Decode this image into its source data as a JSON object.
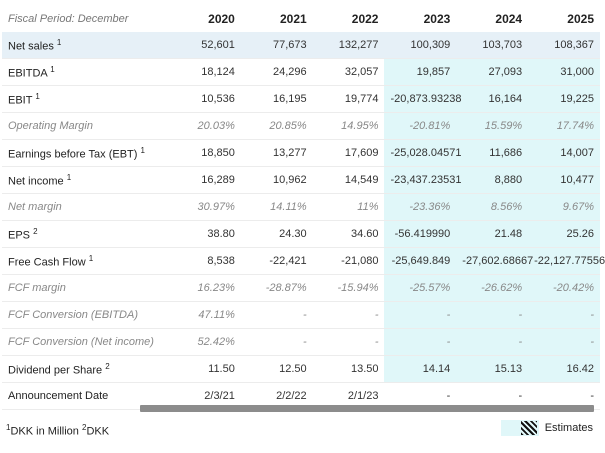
{
  "header": {
    "period_label": "Fiscal Period: December",
    "years": [
      "2020",
      "2021",
      "2022",
      "2023",
      "2024",
      "2025"
    ]
  },
  "rows": [
    {
      "label": "Net sales",
      "sup": "1",
      "italic": false,
      "highlight": true,
      "values": [
        "52,601",
        "77,673",
        "132,277",
        "100,309",
        "103,703",
        "108,367"
      ]
    },
    {
      "label": "EBITDA",
      "sup": "1",
      "italic": false,
      "highlight": false,
      "values": [
        "18,124",
        "24,296",
        "32,057",
        "19,857",
        "27,093",
        "31,000"
      ]
    },
    {
      "label": "EBIT",
      "sup": "1",
      "italic": false,
      "highlight": false,
      "values": [
        "10,536",
        "16,195",
        "19,774",
        "-20,873.93238",
        "16,164",
        "19,225"
      ]
    },
    {
      "label": "Operating Margin",
      "sup": "",
      "italic": true,
      "highlight": false,
      "values": [
        "20.03%",
        "20.85%",
        "14.95%",
        "-20.81%",
        "15.59%",
        "17.74%"
      ]
    },
    {
      "label": "Earnings before Tax (EBT)",
      "sup": "1",
      "italic": false,
      "highlight": false,
      "values": [
        "18,850",
        "13,277",
        "17,609",
        "-25,028.04571",
        "11,686",
        "14,007"
      ]
    },
    {
      "label": "Net income",
      "sup": "1",
      "italic": false,
      "highlight": false,
      "values": [
        "16,289",
        "10,962",
        "14,549",
        "-23,437.23531",
        "8,880",
        "10,477"
      ]
    },
    {
      "label": "Net margin",
      "sup": "",
      "italic": true,
      "highlight": false,
      "values": [
        "30.97%",
        "14.11%",
        "11%",
        "-23.36%",
        "8.56%",
        "9.67%"
      ]
    },
    {
      "label": "EPS",
      "sup": "2",
      "italic": false,
      "highlight": false,
      "values": [
        "38.80",
        "24.30",
        "34.60",
        "-56.419990",
        "21.48",
        "25.26"
      ]
    },
    {
      "label": "Free Cash Flow",
      "sup": "1",
      "italic": false,
      "highlight": false,
      "values": [
        "8,538",
        "-22,421",
        "-21,080",
        "-25,649.849",
        "-27,602.68667",
        "-22,127.77556"
      ]
    },
    {
      "label": "FCF margin",
      "sup": "",
      "italic": true,
      "highlight": false,
      "values": [
        "16.23%",
        "-28.87%",
        "-15.94%",
        "-25.57%",
        "-26.62%",
        "-20.42%"
      ]
    },
    {
      "label": "FCF Conversion (EBITDA)",
      "sup": "",
      "italic": true,
      "highlight": false,
      "values": [
        "47.11%",
        "-",
        "-",
        "-",
        "-",
        "-"
      ]
    },
    {
      "label": "FCF Conversion (Net income)",
      "sup": "",
      "italic": true,
      "highlight": false,
      "values": [
        "52.42%",
        "-",
        "-",
        "-",
        "-",
        "-"
      ]
    },
    {
      "label": "Dividend per Share",
      "sup": "2",
      "italic": false,
      "highlight": false,
      "values": [
        "11.50",
        "12.50",
        "13.50",
        "14.14",
        "15.13",
        "16.42"
      ]
    },
    {
      "label": "Announcement Date",
      "sup": "",
      "italic": false,
      "highlight": false,
      "values": [
        "2/3/21",
        "2/2/22",
        "2/1/23",
        "-",
        "-",
        "-"
      ]
    }
  ],
  "estimate_start_index": 3,
  "estimate_end_row_index": 12,
  "footer": {
    "note1_sup": "1",
    "note1_text": "DKK in Million",
    "note2_sup": "2",
    "note2_text": "DKK"
  },
  "legend": {
    "label": "Estimates"
  },
  "colors": {
    "estimate_bg": "#e0f7f9",
    "highlight_bg": "#e6f0f7",
    "scrollbar": "#8c8c8c"
  }
}
